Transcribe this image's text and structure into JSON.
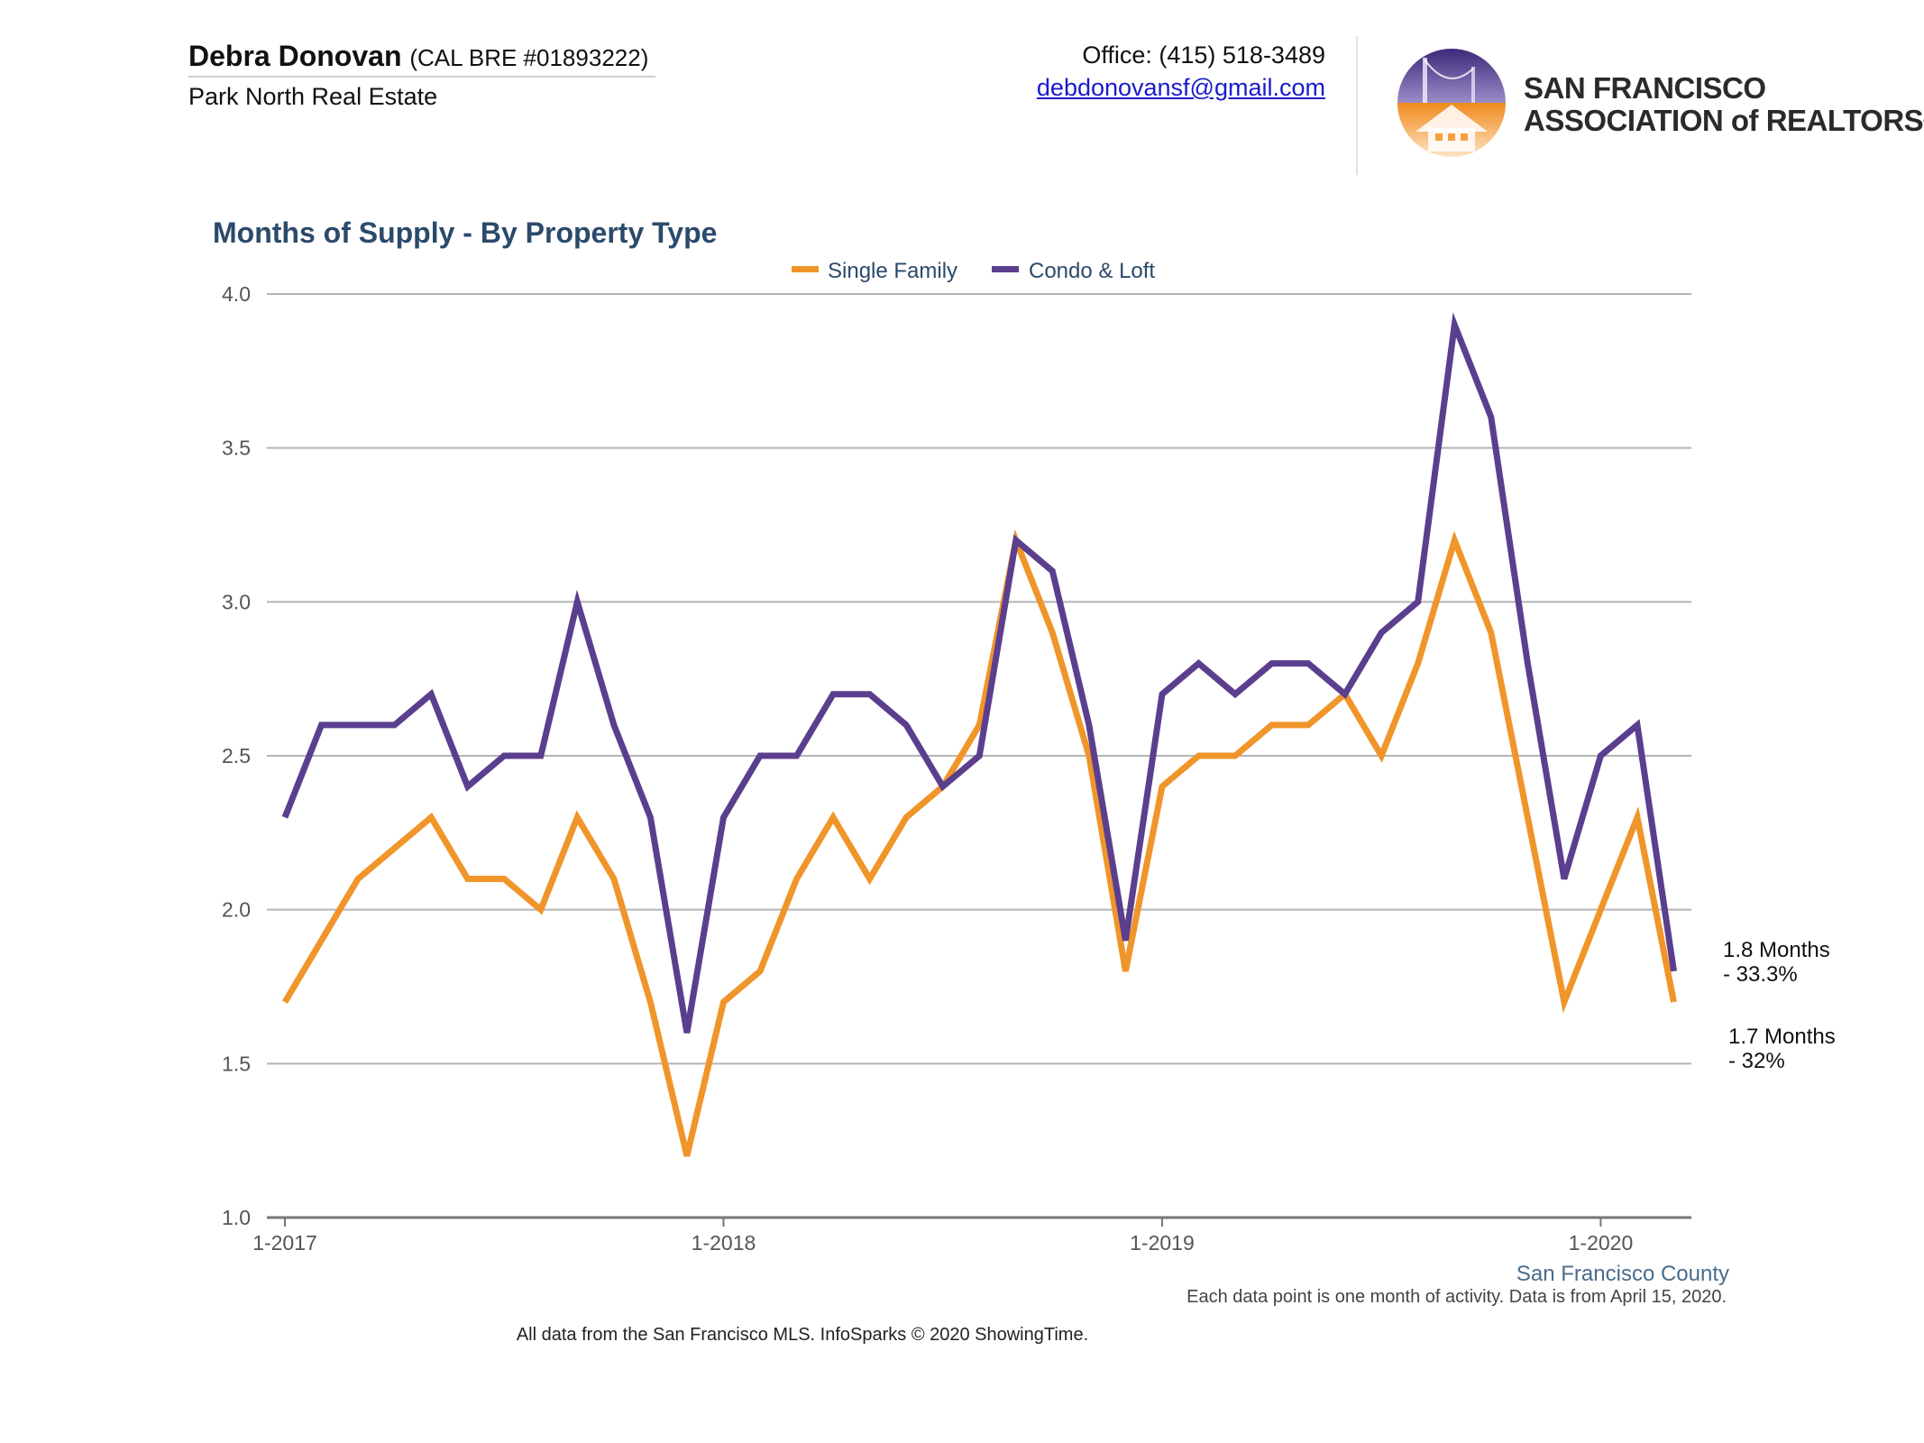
{
  "header": {
    "agent_name": "Debra Donovan",
    "agent_license": "(CAL BRE #01893222)",
    "agent_company": "Park North Real Estate",
    "office_phone": "Office: (415) 518-3489",
    "email": "debdonovansf@gmail.com",
    "association_line1": "SAN FRANCISCO",
    "association_line2": "ASSOCIATION of REALTORS®"
  },
  "chart_data": {
    "type": "line",
    "title": "Months of Supply - By Property Type",
    "xlabel": "",
    "ylabel": "",
    "ylim": [
      1.0,
      4.0
    ],
    "yticks": [
      "1.0",
      "1.5",
      "2.0",
      "2.5",
      "3.0",
      "3.5",
      "4.0"
    ],
    "xticks": [
      "1-2017",
      "1-2018",
      "1-2019",
      "1-2020"
    ],
    "x": [
      "1-2017",
      "2-2017",
      "3-2017",
      "4-2017",
      "5-2017",
      "6-2017",
      "7-2017",
      "8-2017",
      "9-2017",
      "10-2017",
      "11-2017",
      "12-2017",
      "1-2018",
      "2-2018",
      "3-2018",
      "4-2018",
      "5-2018",
      "6-2018",
      "7-2018",
      "8-2018",
      "9-2018",
      "10-2018",
      "11-2018",
      "12-2018",
      "1-2019",
      "2-2019",
      "3-2019",
      "4-2019",
      "5-2019",
      "6-2019",
      "7-2019",
      "8-2019",
      "9-2019",
      "10-2019",
      "11-2019",
      "12-2019",
      "1-2020",
      "2-2020",
      "3-2020"
    ],
    "series": [
      {
        "name": "Single Family",
        "color": "#f0952a",
        "values": [
          1.7,
          1.9,
          2.1,
          2.2,
          2.3,
          2.1,
          2.1,
          2.0,
          2.3,
          2.1,
          1.7,
          1.2,
          1.7,
          1.8,
          2.1,
          2.3,
          2.1,
          2.3,
          2.4,
          2.6,
          3.2,
          2.9,
          2.5,
          1.8,
          2.4,
          2.5,
          2.5,
          2.6,
          2.6,
          2.7,
          2.5,
          2.8,
          3.2,
          2.9,
          2.3,
          1.7,
          2.0,
          2.3,
          1.7
        ],
        "end_label": [
          "1.7 Months",
          "- 32%"
        ]
      },
      {
        "name": "Condo & Loft",
        "color": "#5b3f8e",
        "values": [
          2.3,
          2.6,
          2.6,
          2.6,
          2.7,
          2.4,
          2.5,
          2.5,
          3.0,
          2.6,
          2.3,
          1.6,
          2.3,
          2.5,
          2.5,
          2.7,
          2.7,
          2.6,
          2.4,
          2.5,
          3.2,
          3.1,
          2.6,
          1.9,
          2.7,
          2.8,
          2.7,
          2.8,
          2.8,
          2.7,
          2.9,
          3.0,
          3.9,
          3.6,
          2.8,
          2.1,
          2.5,
          2.6,
          1.8
        ],
        "end_label": [
          "1.8 Months",
          "- 33.3%"
        ]
      }
    ],
    "grid": true,
    "legend": "top-center",
    "region_label": "San Francisco County"
  },
  "footer": {
    "note": "Each data point is one month of activity. Data is from April 15, 2020.",
    "source": "All data from the San Francisco MLS. InfoSparks © 2020 ShowingTime."
  }
}
